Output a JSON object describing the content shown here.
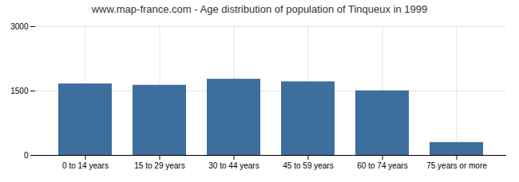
{
  "chart_data": {
    "type": "bar",
    "title": "www.map-france.com - Age distribution of population of Tinqueux in 1999",
    "categories": [
      "0 to 14 years",
      "15 to 29 years",
      "30 to 44 years",
      "45 to 59 years",
      "60 to 74 years",
      "75 years or more"
    ],
    "values": [
      1665,
      1635,
      1775,
      1715,
      1505,
      300
    ],
    "color": "#3d6e9e",
    "ylim": [
      0,
      3000
    ],
    "yticks": [
      0,
      1500,
      3000
    ],
    "grid": true
  }
}
